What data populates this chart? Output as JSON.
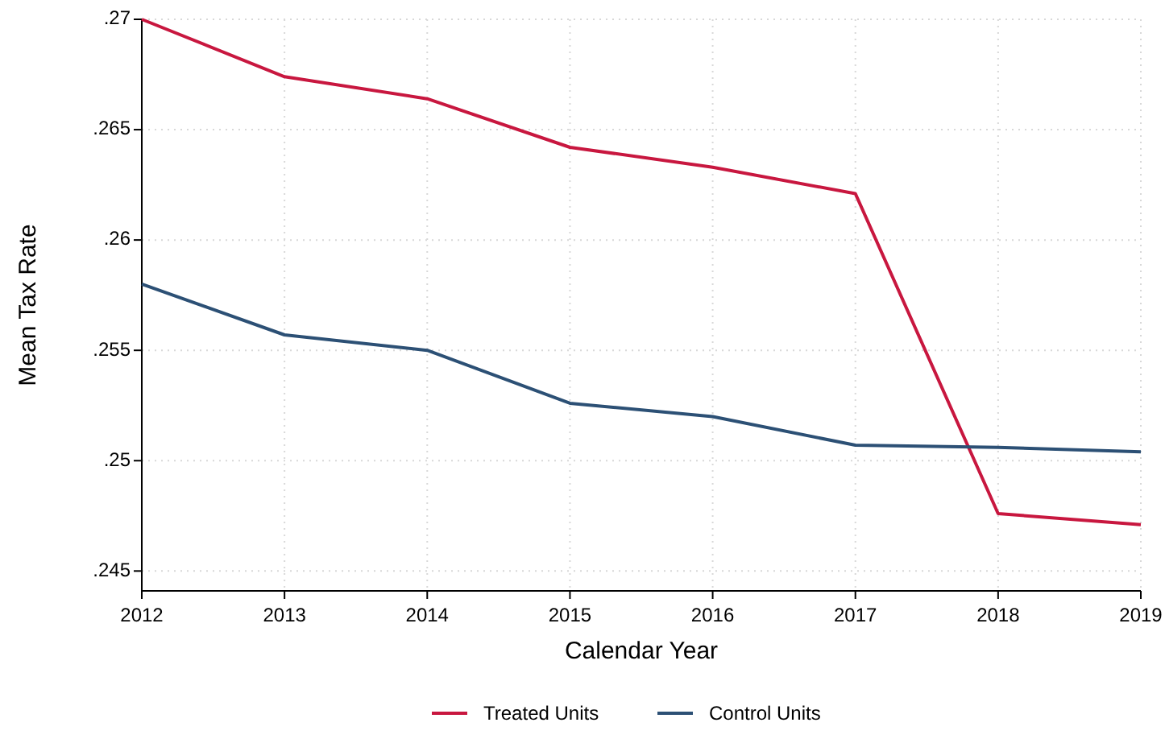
{
  "chart_data": {
    "type": "line",
    "xlabel": "Calendar Year",
    "ylabel": "Mean Tax Rate",
    "x": [
      2012,
      2013,
      2014,
      2015,
      2016,
      2017,
      2018,
      2019
    ],
    "series": [
      {
        "name": "Treated Units",
        "color": "#c8173f",
        "values": [
          0.27,
          0.2674,
          0.2664,
          0.2642,
          0.2633,
          0.2621,
          0.2476,
          0.2471
        ]
      },
      {
        "name": "Control Units",
        "color": "#2c5075",
        "values": [
          0.258,
          0.2557,
          0.255,
          0.2526,
          0.252,
          0.2507,
          0.2506,
          0.2504
        ]
      }
    ],
    "xlim": [
      2012,
      2019
    ],
    "xticks": [
      2012,
      2013,
      2014,
      2015,
      2016,
      2017,
      2018,
      2019
    ],
    "ylim": [
      0.2441,
      0.27
    ],
    "yticks": [
      {
        "value": 0.245,
        "label": ".245"
      },
      {
        "value": 0.25,
        "label": ".25"
      },
      {
        "value": 0.255,
        "label": ".255"
      },
      {
        "value": 0.26,
        "label": ".26"
      },
      {
        "value": 0.265,
        "label": ".265"
      },
      {
        "value": 0.27,
        "label": ".27"
      }
    ],
    "grid": true,
    "legend": "bottom",
    "marker": "none",
    "line_style": "solid"
  }
}
